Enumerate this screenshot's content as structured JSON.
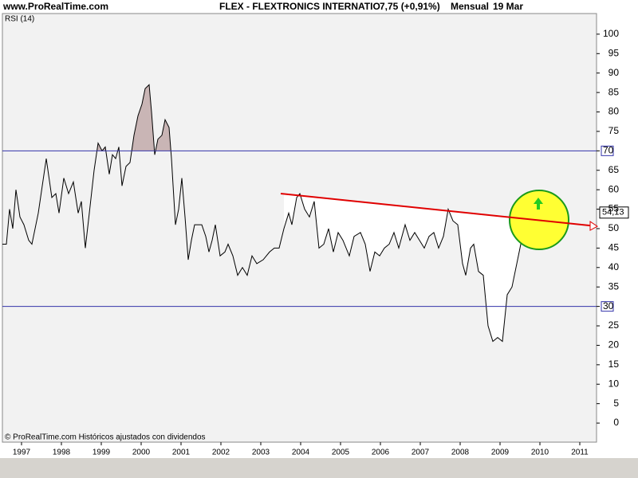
{
  "header": {
    "site": "www.ProRealTime.com",
    "instrument": "FLEX - FLEXTRONICS INTERNATIO",
    "quote": "7,75 (+0,91%)",
    "period": "Mensual",
    "date": "19 Mar"
  },
  "footer": "© ProRealTime.com  Históricos ajustados con dividendos",
  "chart_data": {
    "type": "line",
    "title": "RSI (14)",
    "x": [
      1996.52,
      1996.62,
      1996.7,
      1996.78,
      1996.86,
      1996.96,
      1997.06,
      1997.18,
      1997.26,
      1997.42,
      1997.62,
      1997.76,
      1997.86,
      1997.94,
      1998.06,
      1998.18,
      1998.3,
      1998.42,
      1998.5,
      1998.6,
      1998.7,
      1998.82,
      1998.92,
      1999.02,
      1999.1,
      1999.2,
      1999.28,
      1999.36,
      1999.44,
      1999.52,
      1999.62,
      1999.72,
      1999.82,
      1999.92,
      2000.02,
      2000.1,
      2000.2,
      2000.26,
      2000.34,
      2000.42,
      2000.52,
      2000.6,
      2000.7,
      2000.76,
      2000.86,
      2000.94,
      2001.02,
      2001.1,
      2001.18,
      2001.26,
      2001.34,
      2001.42,
      2001.52,
      2001.62,
      2001.7,
      2001.78,
      2001.86,
      2001.98,
      2002.1,
      2002.18,
      2002.3,
      2002.42,
      2002.54,
      2002.66,
      2002.78,
      2002.9,
      2003.06,
      2003.22,
      2003.34,
      2003.46,
      2003.58,
      2003.7,
      2003.78,
      2003.9,
      2003.98,
      2004.1,
      2004.22,
      2004.34,
      2004.46,
      2004.58,
      2004.7,
      2004.82,
      2004.94,
      2005.06,
      2005.22,
      2005.34,
      2005.5,
      2005.62,
      2005.74,
      2005.86,
      2005.98,
      2006.1,
      2006.22,
      2006.34,
      2006.46,
      2006.62,
      2006.74,
      2006.86,
      2006.98,
      2007.1,
      2007.22,
      2007.34,
      2007.46,
      2007.58,
      2007.7,
      2007.82,
      2007.94,
      2008.06,
      2008.14,
      2008.26,
      2008.34,
      2008.46,
      2008.58,
      2008.7,
      2008.82,
      2008.94,
      2009.06,
      2009.18,
      2009.3,
      2009.42,
      2009.54,
      2009.62,
      2009.7,
      2009.78,
      2009.86,
      2009.94,
      2010.06,
      2010.16
    ],
    "series": [
      {
        "color": "#000000",
        "values": [
          46,
          46,
          55,
          50,
          60,
          53,
          51,
          47,
          46,
          54,
          68,
          58,
          59,
          54,
          63,
          59,
          62,
          54,
          57,
          45,
          54,
          65,
          72,
          70,
          71,
          64,
          69,
          68,
          71,
          61,
          66,
          67,
          74,
          79,
          82,
          86,
          87,
          80,
          69,
          73,
          74,
          78,
          76,
          68,
          51,
          55,
          63,
          53,
          42,
          47,
          51,
          51,
          51,
          48,
          44,
          47,
          51,
          43,
          44,
          46,
          43,
          38,
          40,
          38,
          43,
          41,
          42,
          44,
          45,
          45,
          50,
          54,
          51,
          58,
          59,
          55,
          53,
          57,
          45,
          46,
          50,
          44,
          49,
          47,
          43,
          48,
          49,
          46,
          39,
          44,
          43,
          45,
          46,
          49,
          45,
          51,
          47,
          49,
          47,
          45,
          48,
          49,
          45,
          48,
          55,
          52,
          51,
          41,
          38,
          45,
          46,
          39,
          38,
          25,
          21,
          22,
          21,
          33,
          35,
          41,
          47,
          53,
          50,
          52,
          52,
          48,
          51,
          54.13
        ]
      }
    ],
    "last_value": {
      "value": 54.13,
      "label": "54,13"
    },
    "hlines": [
      70,
      30
    ],
    "hline_color": "#3333aa",
    "fill_above_color": "#c9b5b5",
    "fill_below_color": "#b7cbb7",
    "trendline": {
      "x": [
        2003.5,
        2011.26
      ],
      "values": [
        59,
        50.8
      ],
      "color": "#e00000"
    },
    "xlim": [
      1996.52,
      2011.42
    ],
    "xticks": [
      1997,
      1998,
      1999,
      2000,
      2001,
      2002,
      2003,
      2004,
      2005,
      2006,
      2007,
      2008,
      2009,
      2010,
      2011
    ],
    "ylim": [
      -4.9,
      105.3
    ],
    "yticks": [
      0,
      5,
      10,
      15,
      20,
      25,
      30,
      35,
      40,
      45,
      50,
      55,
      60,
      65,
      70,
      75,
      80,
      85,
      90,
      95,
      100
    ]
  }
}
